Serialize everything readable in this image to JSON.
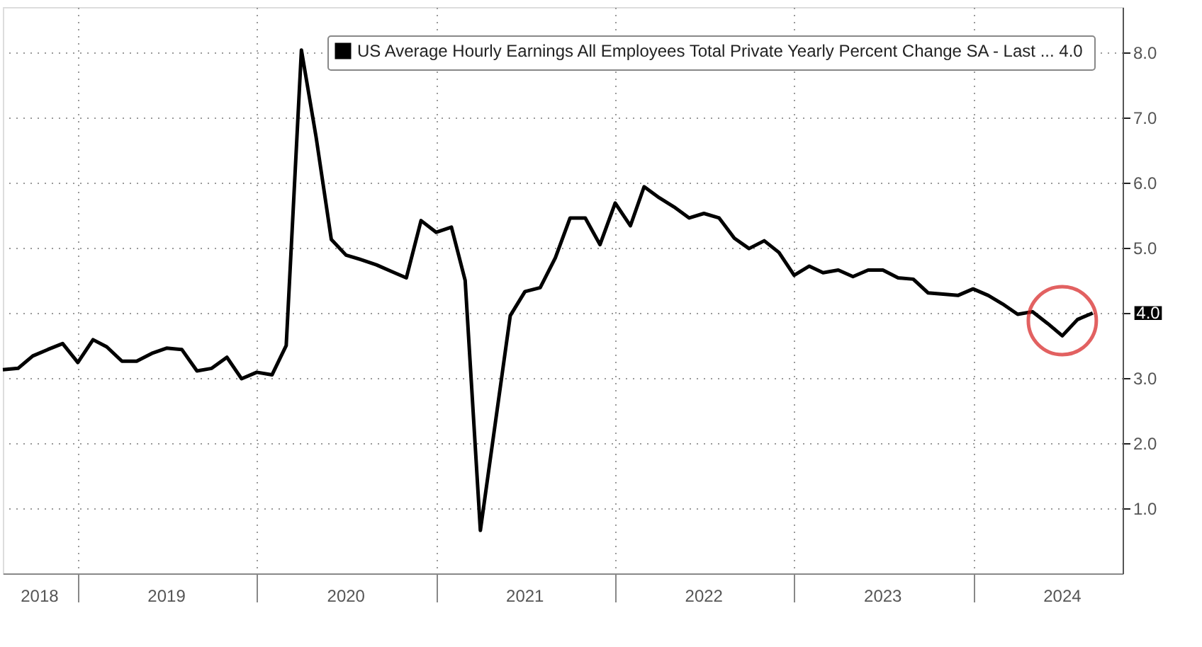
{
  "chart_data": {
    "type": "line",
    "x": [
      "2018-08",
      "2018-09",
      "2018-10",
      "2018-11",
      "2018-12",
      "2019-01",
      "2019-02",
      "2019-03",
      "2019-04",
      "2019-05",
      "2019-06",
      "2019-07",
      "2019-08",
      "2019-09",
      "2019-10",
      "2019-11",
      "2019-12",
      "2020-01",
      "2020-02",
      "2020-03",
      "2020-04",
      "2020-05",
      "2020-06",
      "2020-07",
      "2020-08",
      "2020-09",
      "2020-10",
      "2020-11",
      "2020-12",
      "2021-01",
      "2021-02",
      "2021-03",
      "2021-04",
      "2021-06",
      "2021-07",
      "2021-08",
      "2021-09",
      "2021-10",
      "2021-11",
      "2021-12",
      "2022-01",
      "2022-02",
      "2022-03",
      "2022-04",
      "2022-05",
      "2022-06",
      "2022-07",
      "2022-08",
      "2022-09",
      "2022-10",
      "2022-11",
      "2022-12",
      "2023-01",
      "2023-02",
      "2023-03",
      "2023-04",
      "2023-05",
      "2023-06",
      "2023-07",
      "2023-08",
      "2023-09",
      "2023-10",
      "2023-11",
      "2023-12",
      "2024-01",
      "2024-02",
      "2024-03",
      "2024-04",
      "2024-05",
      "2024-06",
      "2024-07",
      "2024-08",
      "2024-09"
    ],
    "series": [
      {
        "name": "US Average Hourly Earnings All Employees Total Private Yearly Percent Change SA - Last ... 4.0",
        "color": "#000000",
        "values": [
          3.13,
          3.15,
          3.34,
          3.44,
          3.53,
          3.24,
          3.59,
          3.48,
          3.26,
          3.26,
          3.38,
          3.46,
          3.44,
          3.11,
          3.15,
          3.32,
          2.99,
          3.09,
          3.05,
          3.5,
          8.04,
          6.7,
          5.13,
          4.89,
          4.82,
          4.74,
          4.64,
          4.54,
          5.42,
          5.24,
          5.32,
          4.5,
          0.66,
          3.96,
          4.33,
          4.39,
          4.85,
          5.46,
          5.46,
          5.05,
          5.69,
          5.34,
          5.94,
          5.77,
          5.63,
          5.46,
          5.53,
          5.46,
          5.15,
          4.99,
          5.11,
          4.93,
          4.58,
          4.72,
          4.62,
          4.66,
          4.56,
          4.66,
          4.66,
          4.54,
          4.52,
          4.31,
          4.29,
          4.27,
          4.37,
          4.27,
          4.14,
          3.98,
          4.02,
          3.84,
          3.65,
          3.9,
          4.0
        ]
      }
    ],
    "xlim": [
      "2018-08-01",
      "2024-11-01"
    ],
    "xticks": [
      {
        "value": "2019-01-01",
        "label": null
      },
      {
        "value": "2020-01-01",
        "label": null
      },
      {
        "value": "2021-01-01",
        "label": null
      },
      {
        "value": "2022-01-01",
        "label": null
      },
      {
        "value": "2023-01-01",
        "label": null
      },
      {
        "value": "2024-01-01",
        "label": null
      },
      {
        "value": "2018-10-15",
        "label": "2018"
      },
      {
        "value": "2019-07-01",
        "label": "2019"
      },
      {
        "value": "2020-07-01",
        "label": "2020"
      },
      {
        "value": "2021-07-01",
        "label": "2021"
      },
      {
        "value": "2022-07-01",
        "label": "2022"
      },
      {
        "value": "2023-07-01",
        "label": "2023"
      },
      {
        "value": "2024-07-01",
        "label": "2024"
      }
    ],
    "ylim": [
      0,
      8.7
    ],
    "yticks": [
      {
        "value": 1,
        "label": "1.0"
      },
      {
        "value": 2,
        "label": "2.0"
      },
      {
        "value": 3,
        "label": "3.0"
      },
      {
        "value": 4,
        "label": null
      },
      {
        "value": 5,
        "label": "5.0"
      },
      {
        "value": 6,
        "label": "6.0"
      },
      {
        "value": 7,
        "label": "7.0"
      },
      {
        "value": 8,
        "label": "8.0"
      }
    ],
    "grid": true,
    "legend": "top right",
    "line_style": "solid",
    "marker": "none",
    "annotations": [
      "4.0"
    ]
  }
}
